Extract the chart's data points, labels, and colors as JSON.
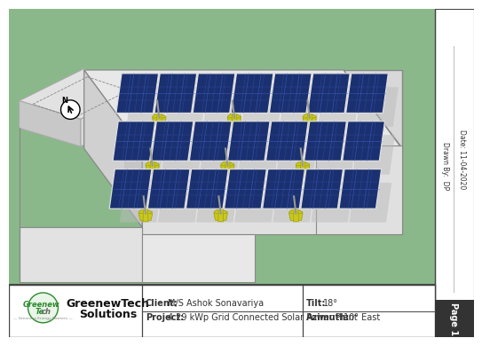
{
  "green_bg": "#8ab88a",
  "building_top": "#e8e8e8",
  "building_side_dark": "#c8c8c8",
  "building_side_med": "#d4d4d4",
  "building_edge": "#999999",
  "solar_blue_dark": "#1a3070",
  "solar_blue_mid": "#2244aa",
  "solar_blue_light": "#3355bb",
  "panel_frame": "#e0e0e0",
  "panel_line": "#4466cc",
  "mount_color": "#aaaaaa",
  "base_yellow": "#c8c820",
  "base_yellow_dark": "#a0a010",
  "shadow_color": "#cccccc",
  "footer_border": "#444444",
  "page_tab_bg": "#333333",
  "page_tab_fg": "#ffffff",
  "logo_green": "#2d8a2d",
  "logo_gray": "#666666",
  "client_label": "Client:",
  "client_value": "M/S Ashok Sonavariya",
  "project_label": "Project:",
  "project_value": "4.29 kWp Grid Connected Solar Power Plant",
  "tilt_label": "Tilt:",
  "tilt_value": "18°",
  "azimuth_label": "Azimuth:",
  "azimuth_value": "10° East",
  "drawn_by": "Drawn By:  DP",
  "date_text": "Date: 11-04-2020",
  "page_text": "Page 1",
  "company_line1": "GreenewTech",
  "company_line2": "Solutions"
}
